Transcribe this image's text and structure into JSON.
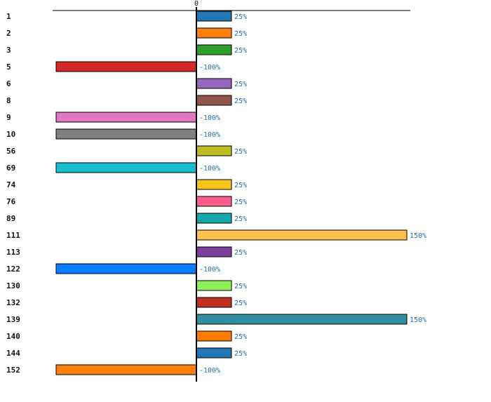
{
  "chart_data": {
    "type": "bar",
    "orientation": "horizontal",
    "title": "",
    "xlabel": "",
    "ylabel": "",
    "xlim": [
      -100,
      150
    ],
    "zero_tick_label": "0",
    "grid": false,
    "legend": "none",
    "categories": [
      "1",
      "2",
      "3",
      "5",
      "6",
      "8",
      "9",
      "10",
      "56",
      "69",
      "74",
      "76",
      "89",
      "111",
      "113",
      "122",
      "130",
      "132",
      "139",
      "140",
      "144",
      "152"
    ],
    "values": [
      25,
      25,
      25,
      -100,
      25,
      25,
      -100,
      -100,
      25,
      -100,
      25,
      25,
      25,
      150,
      25,
      -100,
      25,
      25,
      150,
      25,
      25,
      -100
    ],
    "value_labels": [
      "25%",
      "25%",
      "25%",
      "-100%",
      "25%",
      "25%",
      "-100%",
      "-100%",
      "25%",
      "-100%",
      "25%",
      "25%",
      "25%",
      "150%",
      "25%",
      "-100%",
      "25%",
      "25%",
      "150%",
      "25%",
      "25%",
      "-100%"
    ],
    "colors": [
      "#1f77b4",
      "#ff7f0e",
      "#2ca02c",
      "#d62728",
      "#9467bd",
      "#8c564b",
      "#e377c2",
      "#7f7f7f",
      "#bcbd22",
      "#17becf",
      "#f5c518",
      "#ff5c8a",
      "#17a9a9",
      "#ffc04d",
      "#7b3f9e",
      "#0a7cff",
      "#90ee5a",
      "#c0301e",
      "#2e8fa0",
      "#ff7a00",
      "#1f77b4",
      "#ff7f0e"
    ]
  }
}
